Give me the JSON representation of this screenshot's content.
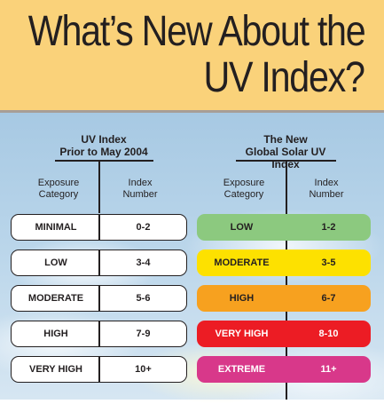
{
  "title": {
    "line1": "What’s New About the",
    "line2": "UV Index?"
  },
  "old_table": {
    "title_line1": "UV Index",
    "title_line2": "Prior to May 2004",
    "col_category": [
      "Exposure",
      "Category"
    ],
    "col_number": [
      "Index",
      "Number"
    ],
    "rows": [
      {
        "category": "MINIMAL",
        "index": "0-2"
      },
      {
        "category": "LOW",
        "index": "3-4"
      },
      {
        "category": "MODERATE",
        "index": "5-6"
      },
      {
        "category": "HIGH",
        "index": "7-9"
      },
      {
        "category": "VERY HIGH",
        "index": "10+"
      }
    ]
  },
  "new_table": {
    "title_line1": "The New",
    "title_line2": "Global Solar UV Index",
    "col_category": [
      "Exposure",
      "Category"
    ],
    "col_number": [
      "Index",
      "Number"
    ],
    "rows": [
      {
        "category": "LOW",
        "index": "1-2",
        "color": "#8cc97f"
      },
      {
        "category": "MODERATE",
        "index": "3-5",
        "color": "#fde100"
      },
      {
        "category": "HIGH",
        "index": "6-7",
        "color": "#f7a11f"
      },
      {
        "category": "VERY HIGH",
        "index": "8-10",
        "color": "#ec1c24"
      },
      {
        "category": "EXTREME",
        "index": "11+",
        "color": "#d8388a"
      }
    ]
  },
  "colors": {
    "header_bg": "#fad27a",
    "text": "#231f20"
  }
}
